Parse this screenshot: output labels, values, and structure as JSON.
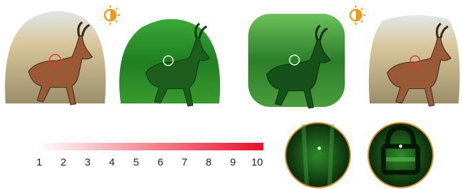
{
  "scale": {
    "labels": [
      1,
      2,
      3,
      4,
      5,
      6,
      7,
      8,
      9,
      10
    ]
  }
}
